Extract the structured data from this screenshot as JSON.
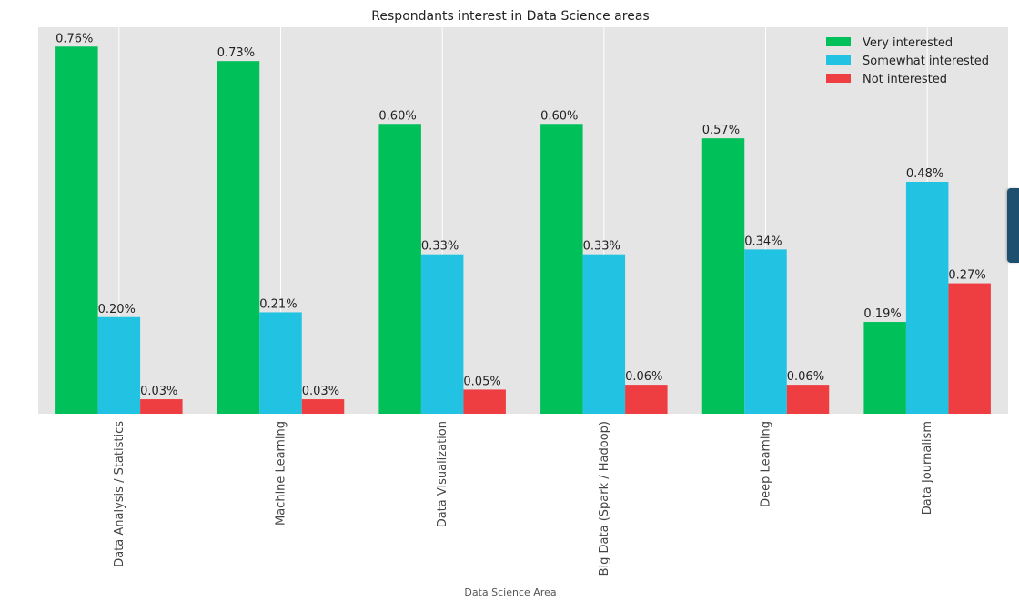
{
  "chart_data": {
    "type": "bar",
    "title": "Respondants interest in Data Science areas",
    "xlabel": "Data Science Area",
    "ylabel": "",
    "categories": [
      "Data Analysis / Statistics",
      "Machine Learning",
      "Data Visualization",
      "Big Data (Spark / Hadoop)",
      "Deep Learning",
      "Data Journalism"
    ],
    "series": [
      {
        "name": "Very interested",
        "color": "#00c05a",
        "values": [
          0.76,
          0.73,
          0.6,
          0.6,
          0.57,
          0.19
        ],
        "labels": [
          "0.76%",
          "0.73%",
          "0.60%",
          "0.60%",
          "0.57%",
          "0.19%"
        ]
      },
      {
        "name": "Somewhat interested",
        "color": "#22c2e3",
        "values": [
          0.2,
          0.21,
          0.33,
          0.33,
          0.34,
          0.48
        ],
        "labels": [
          "0.20%",
          "0.21%",
          "0.33%",
          "0.33%",
          "0.34%",
          "0.48%"
        ]
      },
      {
        "name": "Not interested",
        "color": "#ee3e42",
        "values": [
          0.03,
          0.03,
          0.05,
          0.06,
          0.06,
          0.27
        ],
        "labels": [
          "0.03%",
          "0.03%",
          "0.05%",
          "0.06%",
          "0.06%",
          "0.27%"
        ]
      }
    ],
    "ylim": [
      0,
      0.8
    ],
    "grid": true,
    "legend": "top-right"
  },
  "colors": {
    "plot_background": "#e5e5e5",
    "grid": "#ffffff"
  }
}
